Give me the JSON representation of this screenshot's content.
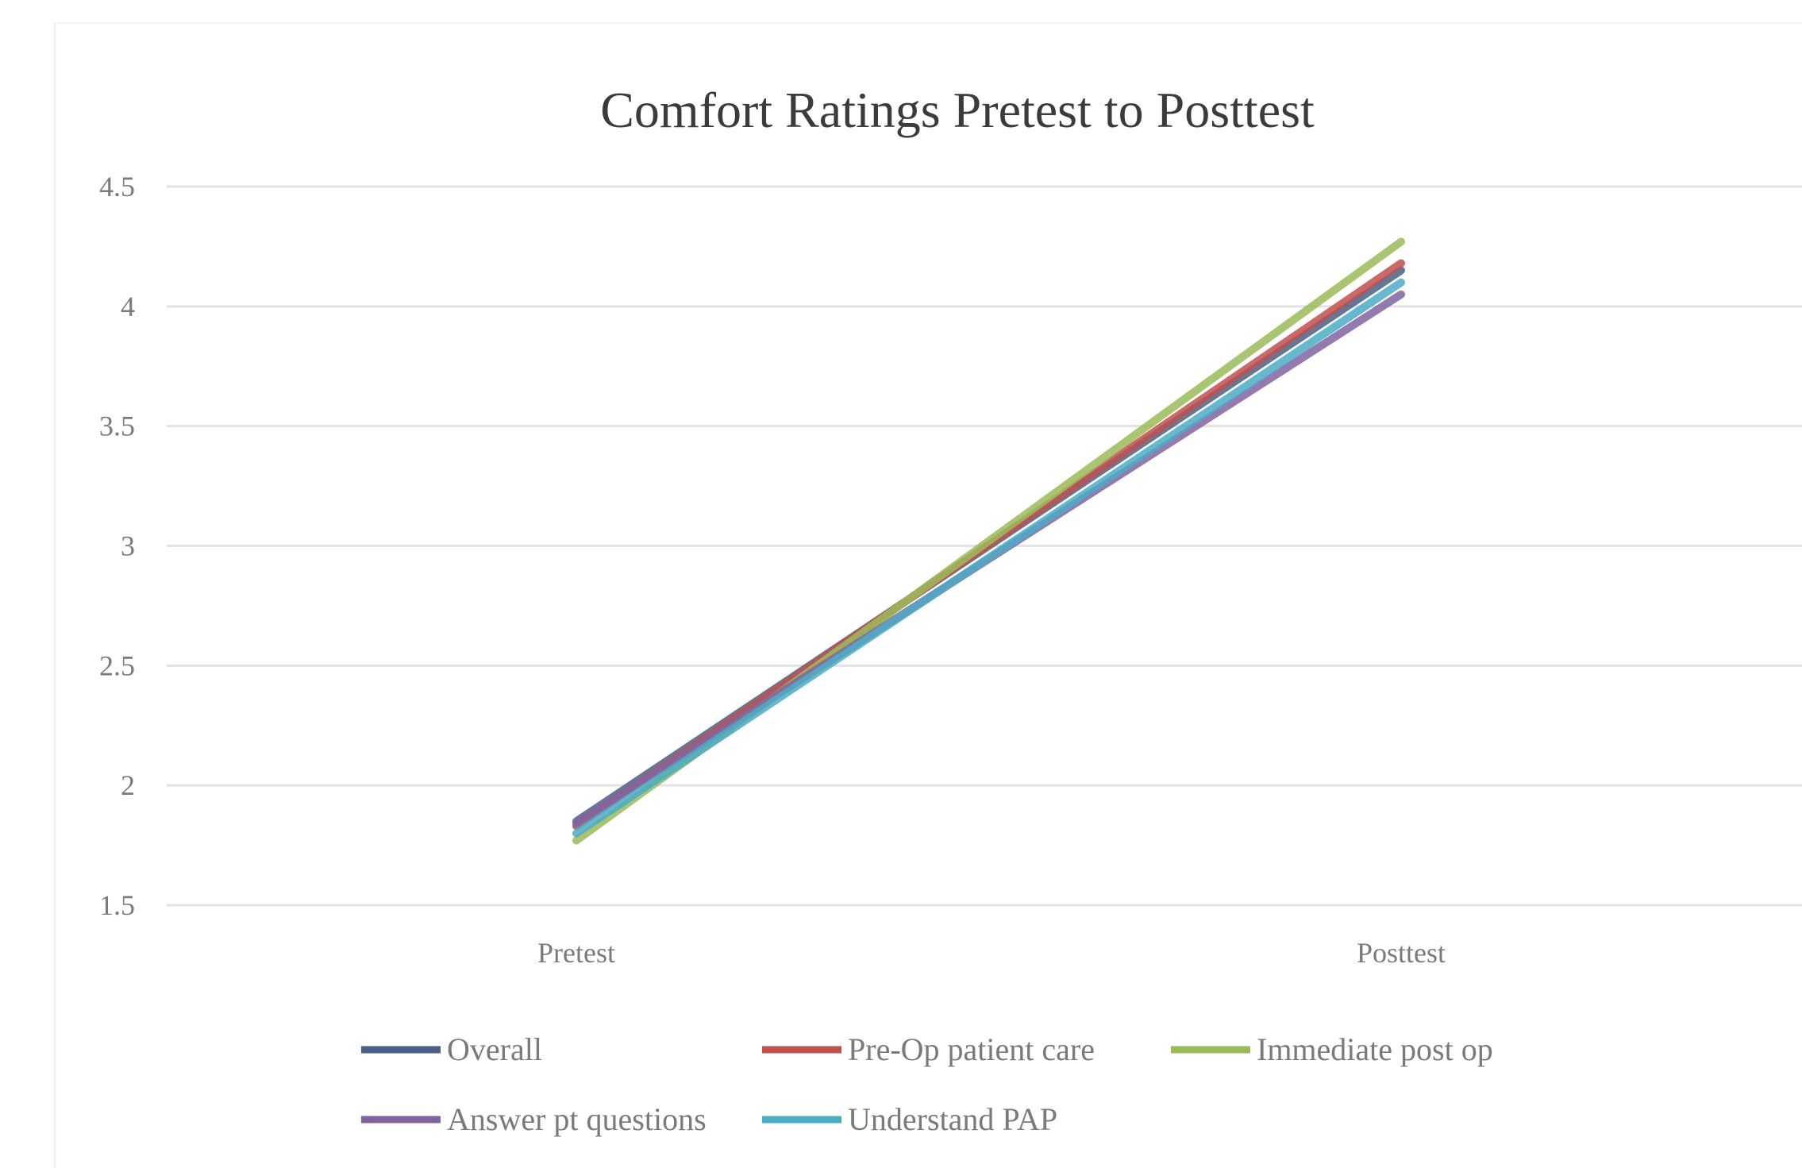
{
  "chart_data": {
    "type": "line",
    "title": "Comfort Ratings Pretest to Posttest",
    "xlabel": "",
    "ylabel": "",
    "categories": [
      "Pretest",
      "Posttest"
    ],
    "ylim": [
      1.5,
      4.5
    ],
    "yticks": [
      "1.5",
      "2",
      "2.5",
      "3",
      "3.5",
      "4",
      "4.5"
    ],
    "grid": true,
    "legend_position": "bottom",
    "series": [
      {
        "name": "Overall",
        "color": "#4a5f86",
        "values": [
          1.85,
          4.15
        ]
      },
      {
        "name": "Pre-Op patient care",
        "color": "#c0504d",
        "values": [
          1.83,
          4.18
        ]
      },
      {
        "name": "Immediate post op",
        "color": "#9bbb59",
        "values": [
          1.77,
          4.27
        ]
      },
      {
        "name": "Answer pt questions",
        "color": "#8064a2",
        "values": [
          1.84,
          4.05
        ]
      },
      {
        "name": "Understand PAP",
        "color": "#4bacc6",
        "values": [
          1.8,
          4.1
        ]
      }
    ]
  }
}
